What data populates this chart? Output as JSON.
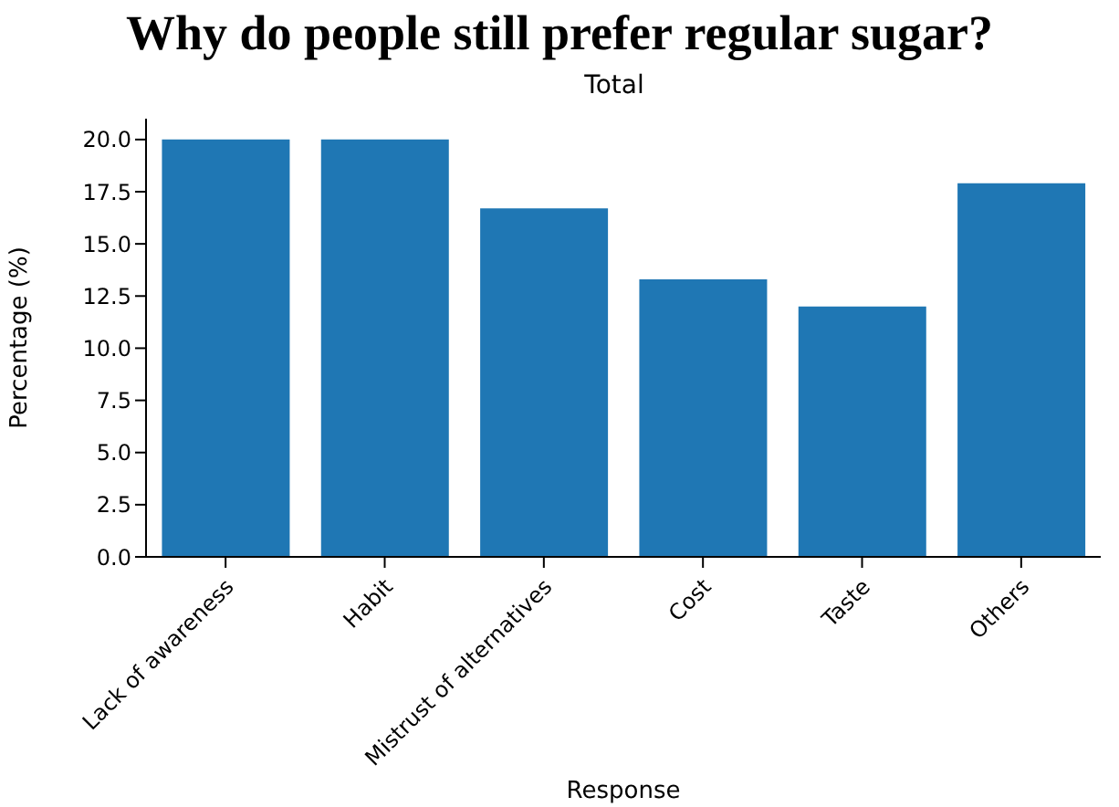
{
  "chart_data": {
    "type": "bar",
    "title": "Why do people still prefer regular sugar?",
    "subtitle": "Total",
    "xlabel": "Response",
    "ylabel": "Percentage (%)",
    "categories": [
      "Lack of awareness",
      "Habit",
      "Mistrust of alternatives",
      "Cost",
      "Taste",
      "Others"
    ],
    "values": [
      20,
      20,
      16.7,
      13.3,
      12,
      17.9
    ],
    "color": "#1f77b4",
    "ylim": [
      0,
      21
    ],
    "yticks": [
      {
        "value": 0,
        "label": "0.0"
      },
      {
        "value": 2.5,
        "label": "2.5"
      },
      {
        "value": 5,
        "label": "5.0"
      },
      {
        "value": 7.5,
        "label": "7.5"
      },
      {
        "value": 10,
        "label": "10.0"
      },
      {
        "value": 12.5,
        "label": "12.5"
      },
      {
        "value": 15,
        "label": "15.0"
      },
      {
        "value": 17.5,
        "label": "17.5"
      },
      {
        "value": 20,
        "label": "20.0"
      }
    ],
    "grid": false,
    "legend": false
  }
}
